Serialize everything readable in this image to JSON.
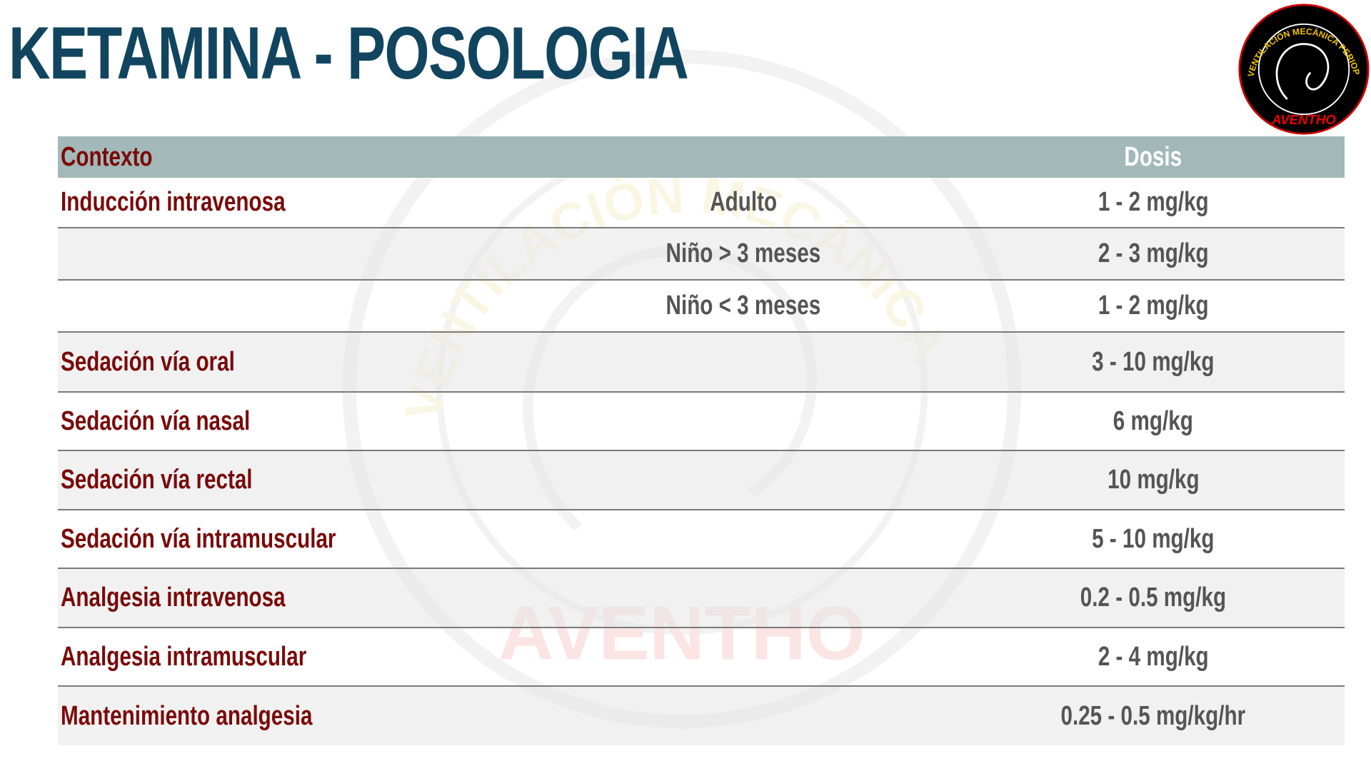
{
  "title": "KETAMINA - POSOLOGIA",
  "logo": {
    "ring_text": "VENTILACIÓN MECÁNICA PERIOPERATORIA",
    "brand": "AVENTHO"
  },
  "colors": {
    "title": "#11455f",
    "context_text": "#7a0a0a",
    "dose_text": "#555555",
    "header_bg": "#a3b8b8"
  },
  "table": {
    "headers": {
      "context": "Contexto",
      "subgroup": "",
      "dose": "Dosis"
    },
    "rows": [
      {
        "context": "Inducción intravenosa",
        "subgroup": "Adulto",
        "dose": "1 - 2 mg/kg"
      },
      {
        "context": "",
        "subgroup": "Niño > 3 meses",
        "dose": "2 - 3 mg/kg"
      },
      {
        "context": "",
        "subgroup": "Niño < 3 meses",
        "dose": "1 - 2 mg/kg"
      },
      {
        "context": "Sedación vía oral",
        "subgroup": "",
        "dose": "3 - 10 mg/kg"
      },
      {
        "context": "Sedación vía nasal",
        "subgroup": "",
        "dose": "6 mg/kg"
      },
      {
        "context": "Sedación vía rectal",
        "subgroup": "",
        "dose": "10 mg/kg"
      },
      {
        "context": "Sedación vía intramuscular",
        "subgroup": "",
        "dose": "5 - 10 mg/kg"
      },
      {
        "context": "Analgesia intravenosa",
        "subgroup": "",
        "dose": "0.2 - 0.5 mg/kg"
      },
      {
        "context": "Analgesia intramuscular",
        "subgroup": "",
        "dose": "2 - 4 mg/kg"
      },
      {
        "context": "Mantenimiento analgesia",
        "subgroup": "",
        "dose": "0.25 - 0.5 mg/kg/hr"
      }
    ]
  }
}
